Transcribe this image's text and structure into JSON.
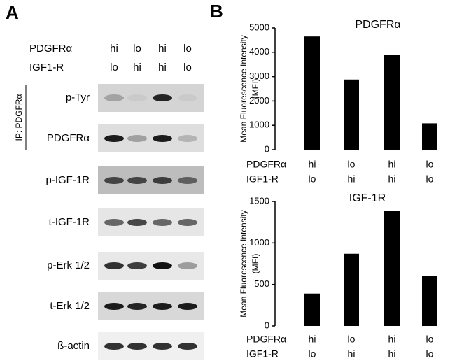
{
  "panel_labels": [
    "A",
    "B"
  ],
  "panel_a": {
    "header_rows": [
      {
        "name": "PDGFRα",
        "labels": [
          "hi",
          "lo",
          "hi",
          "lo"
        ]
      },
      {
        "name": "IGF1-R",
        "labels": [
          "lo",
          "hi",
          "hi",
          "lo"
        ]
      }
    ],
    "ip_label": "IP: PDGFRα",
    "blot_labels": [
      "p-Tyr",
      "PDGFRα",
      "p-IGF-1R",
      "t-IGF-1R",
      "p-Erk 1/2",
      "t-Erk 1/2",
      "ß-actin"
    ]
  },
  "chart_data": [
    {
      "type": "bar",
      "title": "PDGFRα",
      "y_label": [
        "Mean Fluorescence Intensity",
        "(MFI)"
      ],
      "category_rows": [
        {
          "name": "PDGFRα",
          "labels": [
            "hi",
            "lo",
            "hi",
            "lo"
          ]
        },
        {
          "name": "IGF1-R",
          "labels": [
            "lo",
            "hi",
            "hi",
            "lo"
          ]
        }
      ],
      "values": [
        4650,
        2880,
        3900,
        1080
      ],
      "color": "#000000",
      "ylim": [
        0,
        5000
      ],
      "yticks": [
        0,
        1000,
        2000,
        3000,
        4000,
        5000
      ]
    },
    {
      "type": "bar",
      "title": "IGF-1R",
      "y_label": [
        "Mean Fluorescence Intensity",
        "(MFI)"
      ],
      "category_rows": [
        {
          "name": "PDGFRα",
          "labels": [
            "hi",
            "lo",
            "hi",
            "lo"
          ]
        },
        {
          "name": "IGF1-R",
          "labels": [
            "lo",
            "hi",
            "hi",
            "lo"
          ]
        }
      ],
      "values": [
        390,
        870,
        1390,
        600
      ],
      "color": "#000000",
      "ylim": [
        0,
        1500
      ],
      "yticks": [
        0,
        500,
        1000,
        1500
      ]
    }
  ]
}
